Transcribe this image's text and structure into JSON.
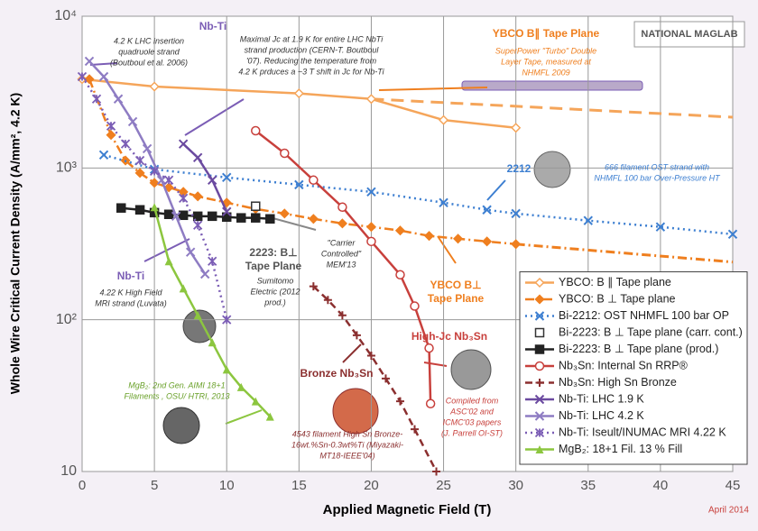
{
  "chart_data": {
    "type": "line",
    "log_y": true,
    "grid": true,
    "legend": "lower right",
    "y_label": "Whole Wire Critical Current Density (A/mm², 4.2 K)",
    "x_label": "Applied Magnetic Field (T)",
    "xlim": [
      0,
      45
    ],
    "xticks": [
      0,
      5,
      10,
      15,
      20,
      25,
      30,
      35,
      40,
      45
    ],
    "ylim": [
      10,
      10000
    ],
    "yticks": [
      10,
      {
        "value": 100,
        "label": "10²"
      },
      {
        "value": 1000,
        "label": "10³"
      },
      {
        "value": 10000,
        "label": "10⁴"
      }
    ],
    "series": [
      {
        "name": "YBCO: B ∥ Tape plane",
        "color": "#f5a55a",
        "marker": "diamond-open",
        "dash": "solid",
        "x": [
          0,
          5,
          15,
          20,
          25,
          30
        ],
        "values": [
          3850,
          3440,
          3100,
          2850,
          2070,
          1840
        ],
        "fit_x": [
          20,
          45
        ],
        "fit_values": [
          2850,
          2160
        ]
      },
      {
        "name": "YBCO: B ⊥ Tape plane",
        "color": "#ef7f1f",
        "marker": "diamond",
        "dash": "dashdot",
        "x": [
          0.5,
          2,
          3,
          4,
          5,
          6,
          7,
          8,
          10,
          12,
          14,
          16,
          18,
          20,
          22,
          24,
          26,
          28,
          30
        ],
        "values": [
          3850,
          1650,
          1120,
          927,
          798,
          745,
          696,
          650,
          591,
          537,
          501,
          462,
          431,
          409,
          387,
          357,
          342,
          328,
          315
        ],
        "fit_x": [
          30,
          45
        ],
        "fit_values": [
          315,
          240
        ]
      },
      {
        "name": "Bi-2212: OST NHMFL 100 bar OP",
        "color": "#3d7fd1",
        "marker": "x",
        "dash": "dot",
        "x": [
          1.5,
          5,
          10,
          15,
          20,
          25,
          28,
          30,
          35,
          40,
          45
        ],
        "values": [
          1220,
          980,
          866,
          776,
          696,
          591,
          530,
          501,
          450,
          409,
          366
        ]
      },
      {
        "name": "Bi-2223: B ⊥ Tape plane (carr. cont.)",
        "color": "#333333",
        "marker": "square-open",
        "dash": "none",
        "x": [
          12
        ],
        "values": [
          560
        ]
      },
      {
        "name": "Bi-2223: B ⊥ Tape plane (prod.)",
        "color": "#222222",
        "marker": "square",
        "dash": "solid",
        "x": [
          2.7,
          4,
          5,
          6,
          7,
          8,
          9,
          10,
          11,
          12,
          13
        ],
        "values": [
          545,
          530,
          508,
          495,
          488,
          481,
          481,
          475,
          469,
          469,
          462
        ]
      },
      {
        "name": "Nb₃Sn: Internal Sn RRP®",
        "color": "#c8403c",
        "marker": "circle-open",
        "dash": "solid",
        "x": [
          12,
          14,
          16,
          18,
          20,
          22,
          23,
          24,
          24.1
        ],
        "values": [
          1760,
          1250,
          832,
          552,
          328,
          198,
          123,
          65,
          28
        ]
      },
      {
        "name": "Nb₃Sn: High Sn Bronze",
        "color": "#8b2f2f",
        "marker": "plus",
        "dash": "dash",
        "x": [
          16,
          17,
          18,
          19,
          20,
          21,
          22,
          23,
          24.5
        ],
        "values": [
          166,
          135,
          107,
          79,
          58,
          41,
          29,
          19,
          10
        ]
      },
      {
        "name": "Nb-Ti: LHC 1.9 K",
        "color": "#6b4aa0",
        "marker": "x",
        "dash": "solid",
        "x": [
          7,
          8,
          9,
          10
        ],
        "values": [
          1440,
          1170,
          832,
          515
        ]
      },
      {
        "name": "Nb-Ti: LHC 4.2 K",
        "color": "#8e7cc3",
        "marker": "x",
        "dash": "solid",
        "x": [
          0.5,
          1.5,
          2.5,
          3.5,
          4.5,
          5.5,
          6.5,
          7.5,
          8.5
        ],
        "values": [
          5050,
          4000,
          2850,
          2020,
          1340,
          832,
          481,
          279,
          200
        ]
      },
      {
        "name": "Nb-Ti: Iseult/INUMAC MRI 4.22 K",
        "color": "#7b5db5",
        "marker": "asterisk",
        "dash": "dot",
        "x": [
          0,
          1,
          2,
          3,
          4,
          5,
          6,
          7,
          8,
          9,
          10
        ],
        "values": [
          4000,
          2850,
          1890,
          1440,
          1120,
          953,
          832,
          632,
          420,
          243,
          100
        ]
      },
      {
        "name": "MgB₂: 18+1 Fil. 13 % Fill",
        "color": "#8cc63f",
        "marker": "triangle",
        "dash": "solid",
        "x": [
          5,
          6,
          7,
          8,
          9,
          10,
          11,
          12,
          13
        ],
        "values": [
          552,
          243,
          161,
          107,
          71,
          47,
          36,
          29,
          23
        ]
      }
    ],
    "annotations": [
      {
        "lines": [
          "4.2 K LHC insertion",
          "quadruole strand",
          "(Boutboul et al. 2006)"
        ],
        "color": "#333333"
      },
      {
        "lines": [
          "Nb-Ti"
        ],
        "color": "#7b5db5"
      },
      {
        "lines": [
          "Maximal Jc at 1.9 K for entire LHC NbTi",
          "strand production (CERN-T. Boutboul",
          "'07). Reducing the temperature from",
          "4.2 K prduces a ~3 T shift in Jc for Nb-Ti"
        ],
        "color": "#333333"
      },
      {
        "lines": [
          "YBCO B∥ Tape Plane"
        ],
        "color": "#ef7f1f"
      },
      {
        "lines": [
          "SuperPower \"Turbo\" Double",
          "Layer Tape, measured at",
          "NHMFL 2009"
        ],
        "color": "#ef7f1f"
      },
      {
        "lines": [
          "2212"
        ],
        "color": "#3d7fd1"
      },
      {
        "lines": [
          "666 filament OST strand with",
          "NHMFL 100 bar Over-Pressure HT"
        ],
        "color": "#3d7fd1"
      },
      {
        "lines": [
          "Nb-Ti"
        ],
        "color": "#7b5db5"
      },
      {
        "lines": [
          "4.22 K High Field",
          "MRI strand (Luvata)"
        ],
        "color": "#333333"
      },
      {
        "lines": [
          "2223: B⊥",
          "Tape Plane"
        ],
        "color": "#555555"
      },
      {
        "lines": [
          "Sumitomo",
          "Electric (2012",
          "prod.)"
        ],
        "color": "#333333"
      },
      {
        "lines": [
          "\"Carrier",
          "Controlled\"",
          "MEM'13"
        ],
        "color": "#333333"
      },
      {
        "lines": [
          "YBCO B⊥",
          "Tape Plane"
        ],
        "color": "#ef7f1f"
      },
      {
        "lines": [
          "High-Jc Nb₃Sn"
        ],
        "color": "#c8403c"
      },
      {
        "lines": [
          "Bronze Nb₃Sn"
        ],
        "color": "#8b2f2f"
      },
      {
        "lines": [
          "MgB₂: 2nd Gen. AIMI 18+1",
          "Filaments , OSU/ HTRI, 2013"
        ],
        "color": "#6aa12a"
      },
      {
        "lines": [
          "4543 filament High Sn Bronze-",
          "16wt.%Sn-0.3wt%Ti (Miyazaki-",
          "MT18-IEEE'04)"
        ],
        "color": "#8b2f2f"
      },
      {
        "lines": [
          "Compiled from",
          "ASC'02 and",
          "ICMC'03 papers",
          "(J. Parrell OI-ST)"
        ],
        "color": "#c8403c"
      }
    ],
    "logo": "NATIONAL MAGLAB",
    "footnote": "April 2014"
  }
}
